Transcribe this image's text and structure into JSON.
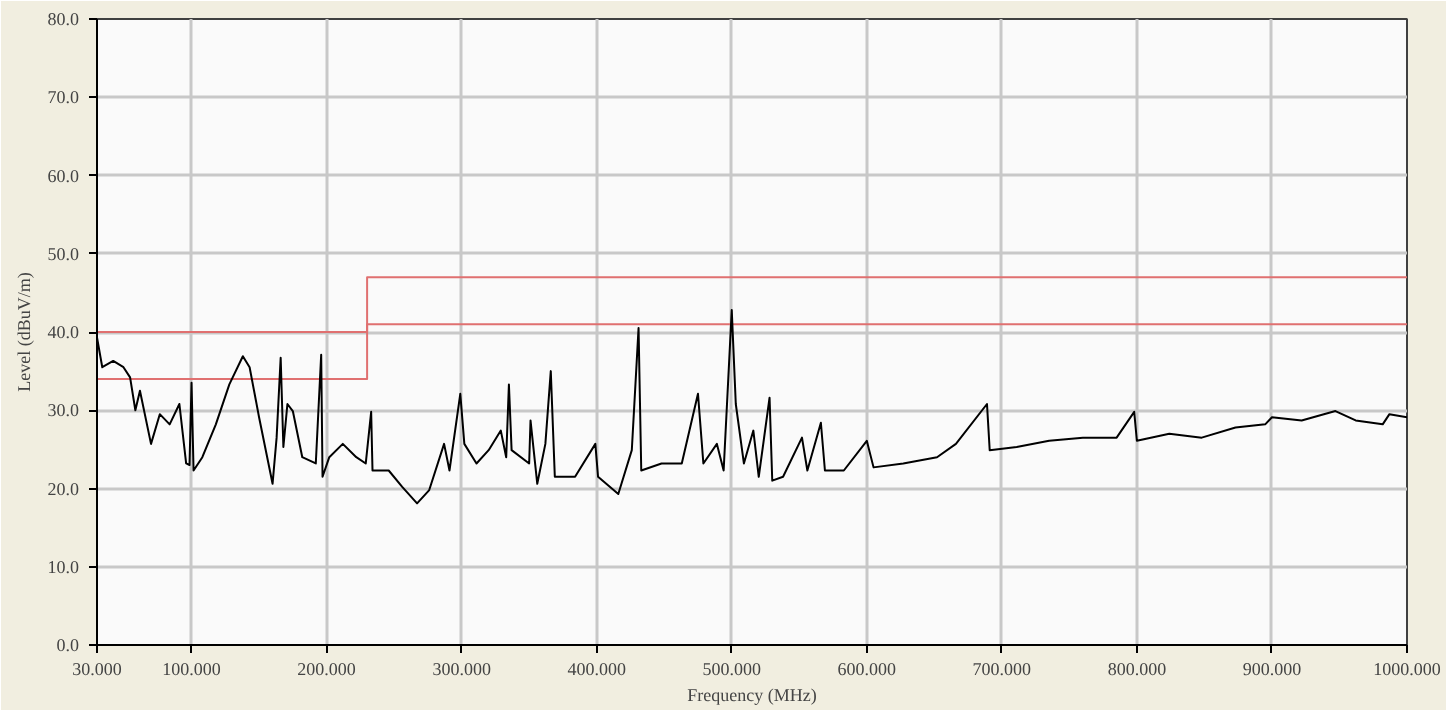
{
  "chart_data": {
    "type": "line",
    "xlabel": "Frequency (MHz)",
    "ylabel": "Level (dBuV/m)",
    "xlim": [
      30,
      1000
    ],
    "ylim": [
      0,
      80
    ],
    "xticks": [
      {
        "value": 30,
        "label": "30.000"
      },
      {
        "value": 100,
        "label": "100.000"
      },
      {
        "value": 200,
        "label": "200.000"
      },
      {
        "value": 300,
        "label": "300.000"
      },
      {
        "value": 400,
        "label": "400.000"
      },
      {
        "value": 500,
        "label": "500.000"
      },
      {
        "value": 600,
        "label": "600.000"
      },
      {
        "value": 700,
        "label": "700.000"
      },
      {
        "value": 800,
        "label": "800.000"
      },
      {
        "value": 900,
        "label": "900.000"
      },
      {
        "value": 1000,
        "label": "1000.000"
      }
    ],
    "yticks": [
      {
        "value": 0,
        "label": "0.0"
      },
      {
        "value": 10,
        "label": "10.0"
      },
      {
        "value": 20,
        "label": "20.0"
      },
      {
        "value": 30,
        "label": "30.0"
      },
      {
        "value": 40,
        "label": "40.0"
      },
      {
        "value": 50,
        "label": "50.0"
      },
      {
        "value": 60,
        "label": "60.0"
      },
      {
        "value": 70,
        "label": "70.0"
      },
      {
        "value": 80,
        "label": "80.0"
      }
    ],
    "grid": true,
    "marker": "none",
    "line_style": "solid",
    "series": [
      {
        "color": "#e07070",
        "x": [
          30,
          230,
          230,
          1000
        ],
        "values": [
          40,
          40,
          47,
          47
        ]
      },
      {
        "color": "#e07070",
        "x": [
          30,
          230,
          230,
          1000
        ],
        "values": [
          34,
          34,
          41,
          41
        ]
      },
      {
        "color": "#000000",
        "x": [
          30,
          33.9,
          42,
          49.6,
          54.5,
          58.4,
          61.8,
          70,
          76.5,
          83.8,
          91,
          96,
          98.5,
          100,
          101.5,
          108,
          118,
          128,
          138,
          143,
          150,
          160,
          163,
          166,
          168,
          171,
          175,
          182,
          192,
          196,
          197,
          202,
          212,
          222,
          229,
          233,
          234,
          246,
          256,
          267,
          276,
          287,
          291,
          299,
          302,
          311,
          320,
          329,
          333,
          335,
          337,
          350,
          351,
          356,
          362,
          366,
          369,
          384,
          399,
          401,
          416,
          426,
          431,
          433,
          448,
          463,
          475,
          479,
          489,
          494,
          500,
          503,
          509,
          516,
          520,
          528,
          530,
          538,
          552,
          556,
          566,
          569,
          583,
          600,
          605,
          627,
          652,
          666,
          689,
          691,
          711,
          735,
          760,
          785,
          798,
          800,
          824,
          848,
          873,
          895,
          900,
          922,
          947,
          962,
          982,
          987,
          1000
        ],
        "values": [
          39.3,
          35.5,
          36.3,
          35.5,
          34.2,
          30,
          32.5,
          25.7,
          29.5,
          28.2,
          30.8,
          23.2,
          23,
          33.5,
          22.3,
          24,
          28.2,
          33.3,
          36.9,
          35.5,
          29.1,
          20.6,
          26.5,
          36.7,
          25.3,
          30.8,
          29.9,
          24,
          23.2,
          37.1,
          21.5,
          24,
          25.7,
          24,
          23.2,
          29.8,
          22.3,
          22.3,
          20.2,
          18.1,
          19.8,
          25.7,
          22.3,
          32.1,
          25.7,
          23.2,
          24.9,
          27.4,
          24,
          33.3,
          24.9,
          23.2,
          28.7,
          20.6,
          25.7,
          35,
          21.5,
          21.5,
          25.7,
          21.5,
          19.3,
          24.9,
          40.5,
          22.3,
          23.2,
          23.2,
          32.1,
          23.2,
          25.7,
          22.3,
          42.8,
          30.8,
          23.2,
          27.4,
          21.5,
          31.6,
          21,
          21.5,
          26.5,
          22.3,
          28.4,
          22.3,
          22.3,
          26.1,
          22.7,
          23.2,
          24,
          25.7,
          30.8,
          24.9,
          25.3,
          26.1,
          26.5,
          26.5,
          29.8,
          26.1,
          27,
          26.5,
          27.8,
          28.2,
          29.1,
          28.7,
          29.9,
          28.7,
          28.2,
          29.5,
          29.1
        ]
      }
    ]
  }
}
